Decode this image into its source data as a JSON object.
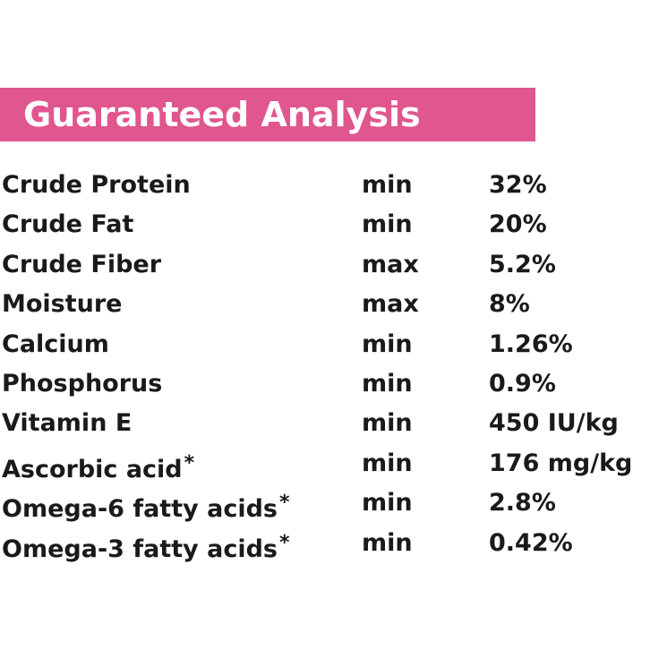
{
  "header": {
    "title": "Guaranteed Analysis"
  },
  "table": {
    "rows": [
      {
        "nutrient": "Crude Protein",
        "basis": "min",
        "amount": "32%"
      },
      {
        "nutrient": "Crude Fat",
        "basis": "min",
        "amount": "20%"
      },
      {
        "nutrient": "Crude Fiber",
        "basis": "max",
        "amount": "5.2%"
      },
      {
        "nutrient": "Moisture",
        "basis": "max",
        "amount": "8%"
      },
      {
        "nutrient": "Calcium",
        "basis": "min",
        "amount": "1.26%"
      },
      {
        "nutrient": "Phosphorus",
        "basis": "min",
        "amount": "0.9%"
      },
      {
        "nutrient": "Vitamin E",
        "basis": "min",
        "amount": "450 IU/kg"
      },
      {
        "nutrient": "Ascorbic acid",
        "note": "*",
        "basis": "min",
        "amount": "176 mg/kg"
      },
      {
        "nutrient": "Omega-6 fatty acids",
        "note": "*",
        "basis": "min",
        "amount": "2.8%"
      },
      {
        "nutrient": "Omega-3 fatty acids",
        "note": "*",
        "basis": "min",
        "amount": "0.42%"
      }
    ]
  }
}
